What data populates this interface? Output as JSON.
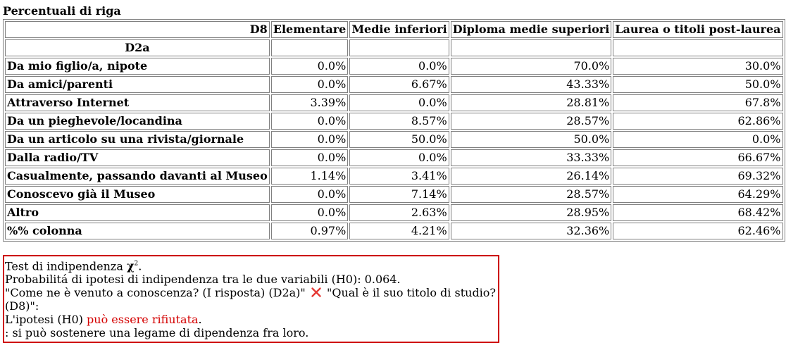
{
  "caption": "Percentuali di riga",
  "table": {
    "corner_col": "D8",
    "row_var": "D2a",
    "columns": [
      "Elementare",
      "Medie inferiori",
      "Diploma medie superiori",
      "Laurea o titoli post-laurea"
    ],
    "rows": [
      {
        "label": "Da mio figlio/a, nipote",
        "values": [
          "0.0%",
          "0.0%",
          "70.0%",
          "30.0%"
        ]
      },
      {
        "label": "Da amici/parenti",
        "values": [
          "0.0%",
          "6.67%",
          "43.33%",
          "50.0%"
        ]
      },
      {
        "label": "Attraverso Internet",
        "values": [
          "3.39%",
          "0.0%",
          "28.81%",
          "67.8%"
        ]
      },
      {
        "label": "Da un pieghevole/locandina",
        "values": [
          "0.0%",
          "8.57%",
          "28.57%",
          "62.86%"
        ]
      },
      {
        "label": "Da un articolo su una rivista/giornale",
        "values": [
          "0.0%",
          "50.0%",
          "50.0%",
          "0.0%"
        ]
      },
      {
        "label": "Dalla radio/TV",
        "values": [
          "0.0%",
          "0.0%",
          "33.33%",
          "66.67%"
        ]
      },
      {
        "label": "Casualmente, passando davanti al Museo",
        "values": [
          "1.14%",
          "3.41%",
          "26.14%",
          "69.32%"
        ]
      },
      {
        "label": "Conoscevo già il Museo",
        "values": [
          "0.0%",
          "7.14%",
          "28.57%",
          "64.29%"
        ]
      },
      {
        "label": "Altro",
        "values": [
          "0.0%",
          "2.63%",
          "28.95%",
          "68.42%"
        ]
      },
      {
        "label": "%% colonna",
        "values": [
          "0.97%",
          "4.21%",
          "32.36%",
          "62.46%"
        ]
      }
    ]
  },
  "test": {
    "line1_prefix": "Test di indipendenza ",
    "chi_symbol": "χ",
    "chi_sup": "2",
    "line1_suffix": ".",
    "line2": "Probabilitá di ipotesi di indipendenza tra le due variabili (H0): 0.064.",
    "var1": "\"Come ne è venuto a conoscenza? (I risposta) (D2a)\"",
    "var2": "\"Qual è il suo titolo di studio? (D8)\":",
    "hypothesis_prefix": "L'ipotesi (H0) ",
    "hypothesis_red": "può essere rifiutata",
    "hypothesis_suffix": ".",
    "conclusion": ": si può sostenere una legame di dipendenza fra loro.",
    "accent_color": "#d40000"
  }
}
